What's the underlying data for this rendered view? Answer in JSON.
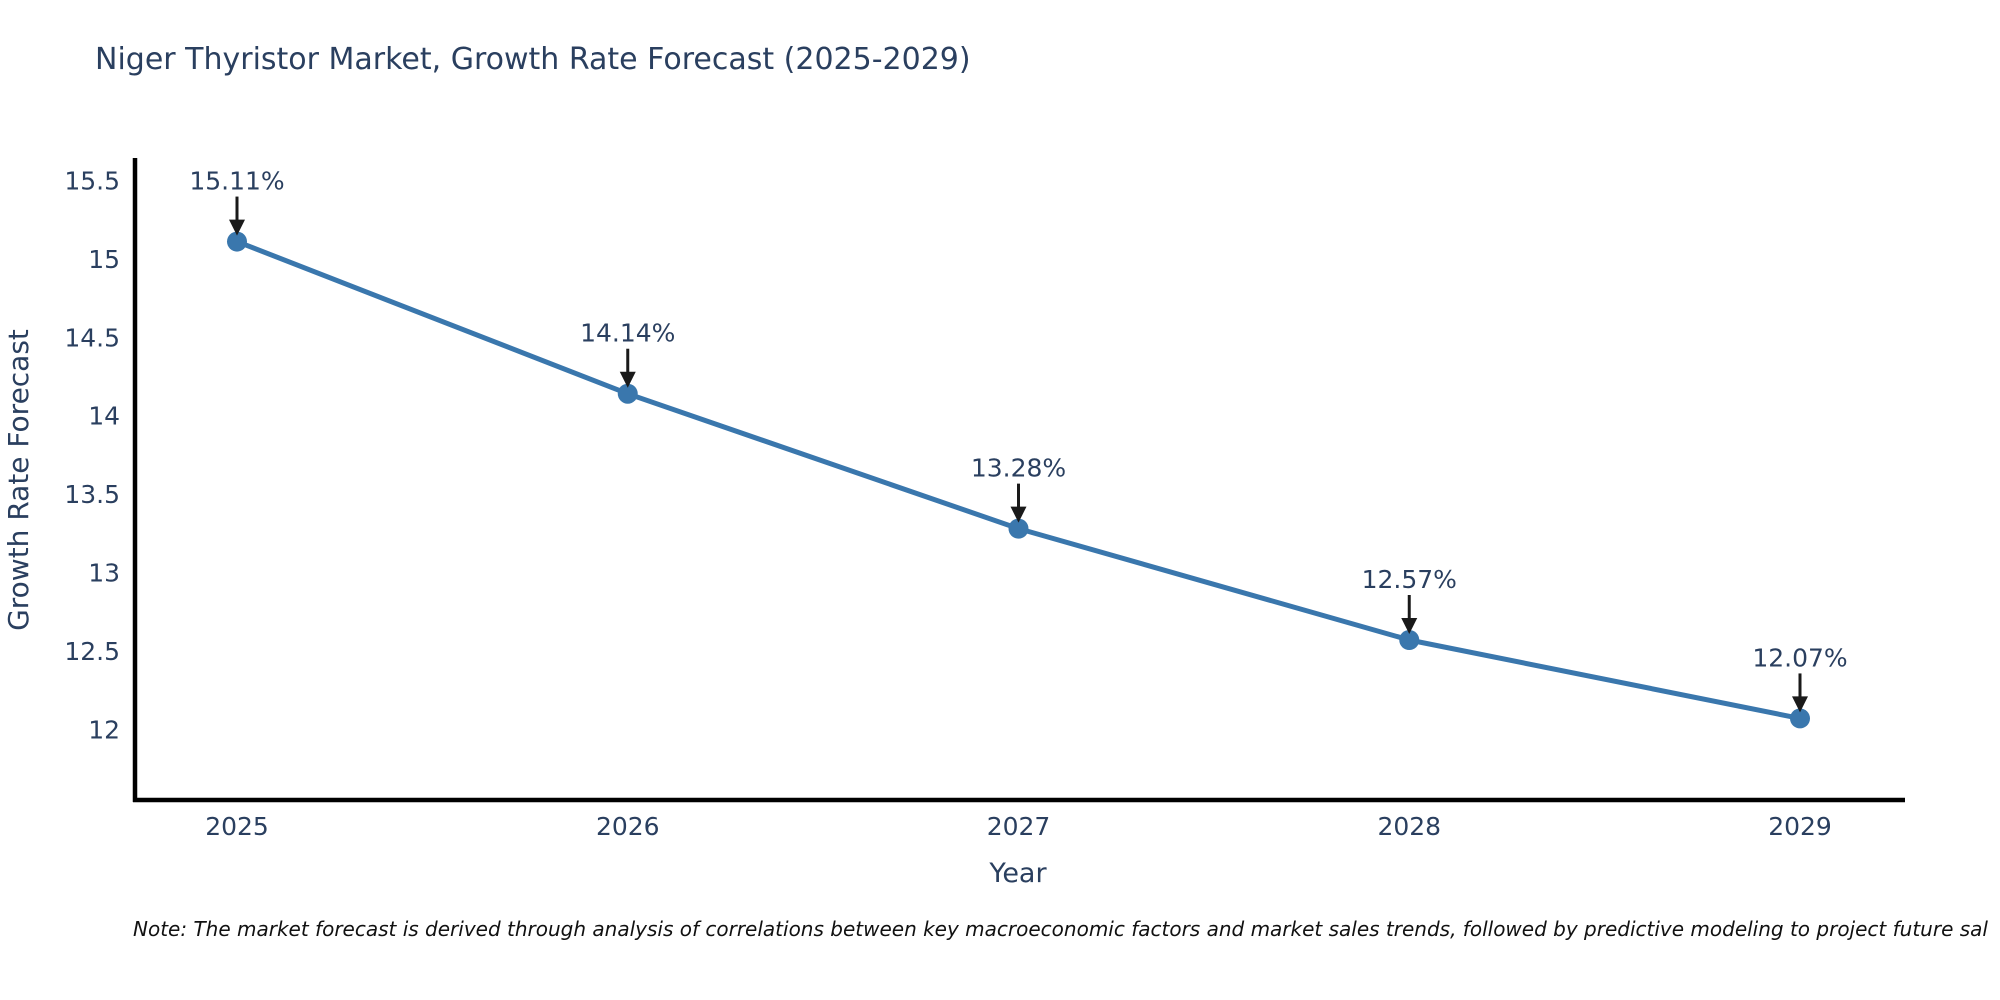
{
  "note": {
    "text": "Note: The market forecast is derived through analysis of correlations between key macroeconomic factors and market sales trends, followed by predictive modeling to project future sal"
  },
  "chart_data": {
    "type": "line",
    "title": "Niger Thyristor Market, Growth Rate Forecast (2025-2029)",
    "xlabel": "Year",
    "ylabel": "Growth Rate Forecast",
    "categories": [
      "2025",
      "2026",
      "2027",
      "2028",
      "2029"
    ],
    "values": [
      15.11,
      14.14,
      13.28,
      12.57,
      12.07
    ],
    "point_labels": [
      "15.11%",
      "14.14%",
      "13.28%",
      "12.57%",
      "12.07%"
    ],
    "ytick_labels": [
      "12",
      "12.5",
      "13",
      "13.5",
      "14",
      "14.5",
      "15",
      "15.5"
    ],
    "ytick_values": [
      12,
      12.5,
      13,
      13.5,
      14,
      14.5,
      15,
      15.5
    ],
    "ylim": [
      11.55,
      15.63
    ],
    "grid": false,
    "legend_position": "none",
    "line_color": "#3a77ad",
    "marker_color": "#3a77ad",
    "axis_color": "#000000",
    "text_color": "#2a3f5f",
    "annotation_color": "#1a1a1a"
  }
}
